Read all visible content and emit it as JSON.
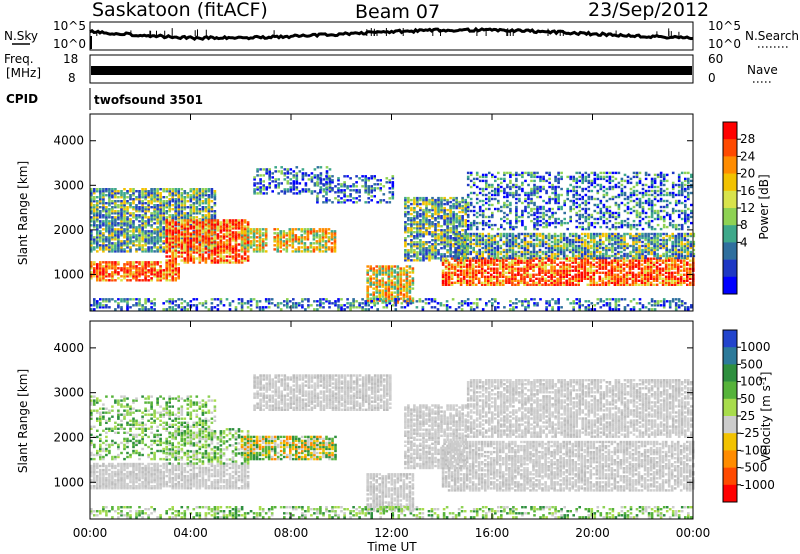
{
  "header": {
    "station": "Saskatoon (fitACF)",
    "beam": "Beam 07",
    "date": "23/Sep/2012"
  },
  "top_panels": {
    "nsky_label": "N.Sky",
    "nsky_ticks": [
      "10^5",
      "10^0"
    ],
    "nsearch_label": "N.Search",
    "nsearch_ticks": [
      "10^5",
      "10^0"
    ],
    "freq_label_line1": "Freq.",
    "freq_label_line2": "[MHz]",
    "freq_ticks": [
      "18",
      "8"
    ],
    "nave_label": "Nave",
    "nave_ticks": [
      "60",
      "0"
    ],
    "cpid_label": "CPID",
    "cpid_value": "twofsound 3501"
  },
  "chart_data": [
    {
      "type": "heatmap",
      "quantity": "power",
      "ylabel": "Slant Range [km]",
      "yticks": [
        "4000",
        "3000",
        "2000",
        "1000"
      ],
      "ylim": [
        180,
        4600
      ],
      "xlim": [
        0,
        24
      ],
      "colorbar": {
        "label": "Power [dB]",
        "ticks": [
          "28",
          "24",
          "20",
          "16",
          "12",
          "8",
          "4"
        ],
        "colors": [
          "#ff0000",
          "#ff4a00",
          "#ff8c00",
          "#f2c200",
          "#d8e34c",
          "#8ed254",
          "#3ea88a",
          "#2f6f9e",
          "#1e38c4",
          "#0000ff"
        ]
      },
      "bands": [
        {
          "t0": 0.0,
          "t1": 5.0,
          "r0": 1500,
          "r1": 2900,
          "kind": "mix_low"
        },
        {
          "t0": 0.0,
          "t1": 3.5,
          "r0": 850,
          "r1": 1300,
          "kind": "strong"
        },
        {
          "t0": 3.0,
          "t1": 6.3,
          "r0": 1250,
          "r1": 2200,
          "kind": "strong"
        },
        {
          "t0": 6.0,
          "t1": 7.0,
          "r0": 1500,
          "r1": 2000,
          "kind": "mid"
        },
        {
          "t0": 7.3,
          "t1": 9.8,
          "r0": 1500,
          "r1": 2000,
          "kind": "mid"
        },
        {
          "t0": 6.5,
          "t1": 9.5,
          "r0": 2800,
          "r1": 3400,
          "kind": "weak"
        },
        {
          "t0": 9.0,
          "t1": 12.0,
          "r0": 2600,
          "r1": 3200,
          "kind": "weak"
        },
        {
          "t0": 11.0,
          "t1": 12.8,
          "r0": 350,
          "r1": 1200,
          "kind": "mid"
        },
        {
          "t0": 12.5,
          "t1": 15.0,
          "r0": 1300,
          "r1": 2700,
          "kind": "mix_low"
        },
        {
          "t0": 14.0,
          "t1": 24.0,
          "r0": 750,
          "r1": 1350,
          "kind": "strong"
        },
        {
          "t0": 14.5,
          "t1": 24.0,
          "r0": 1350,
          "r1": 1900,
          "kind": "mix_low"
        },
        {
          "t0": 15.0,
          "t1": 24.0,
          "r0": 2000,
          "r1": 3300,
          "kind": "weak"
        },
        {
          "t0": 0.0,
          "t1": 24.0,
          "r0": 200,
          "r1": 450,
          "kind": "weak"
        }
      ]
    },
    {
      "type": "heatmap",
      "quantity": "velocity",
      "ylabel": "Slant Range [km]",
      "xlabel": "Time UT",
      "xticks": [
        "00:00",
        "04:00",
        "08:00",
        "12:00",
        "16:00",
        "20:00",
        "00:00"
      ],
      "yticks": [
        "4000",
        "3000",
        "2000",
        "1000"
      ],
      "ylim": [
        180,
        4600
      ],
      "xlim": [
        0,
        24
      ],
      "colorbar": {
        "label": "Velocity [m s",
        "label_sup": "-1",
        "label_end": "]",
        "ticks": [
          "1000",
          "500",
          "100",
          "50",
          "25",
          "-25",
          "-100",
          "-500",
          "-1000"
        ],
        "colors": [
          "#2244cc",
          "#2c7a9a",
          "#2e8f3e",
          "#56b33a",
          "#a8dc4c",
          "#cccccc",
          "#f2c200",
          "#ff8c00",
          "#ff4a00",
          "#ff0000"
        ]
      },
      "bands": [
        {
          "t0": 0.0,
          "t1": 5.0,
          "r0": 1500,
          "r1": 2900,
          "kind": "green"
        },
        {
          "t0": 0.0,
          "t1": 6.3,
          "r0": 850,
          "r1": 1400,
          "kind": "grey"
        },
        {
          "t0": 3.0,
          "t1": 6.3,
          "r0": 1400,
          "r1": 2200,
          "kind": "green"
        },
        {
          "t0": 6.0,
          "t1": 9.8,
          "r0": 1500,
          "r1": 2000,
          "kind": "orange"
        },
        {
          "t0": 6.5,
          "t1": 12.0,
          "r0": 2600,
          "r1": 3400,
          "kind": "grey"
        },
        {
          "t0": 11.0,
          "t1": 12.8,
          "r0": 350,
          "r1": 1200,
          "kind": "grey"
        },
        {
          "t0": 12.5,
          "t1": 15.0,
          "r0": 1300,
          "r1": 2700,
          "kind": "grey"
        },
        {
          "t0": 14.0,
          "t1": 24.0,
          "r0": 800,
          "r1": 1900,
          "kind": "grey"
        },
        {
          "t0": 15.0,
          "t1": 24.0,
          "r0": 2000,
          "r1": 3300,
          "kind": "grey"
        },
        {
          "t0": 0.0,
          "t1": 24.0,
          "r0": 200,
          "r1": 450,
          "kind": "green"
        }
      ]
    }
  ]
}
